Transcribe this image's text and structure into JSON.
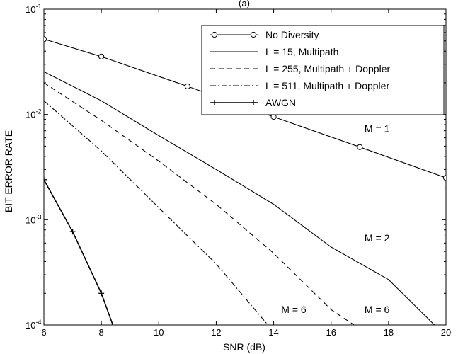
{
  "header": {
    "panel_label": "(a)"
  },
  "chart_data": {
    "type": "line",
    "xlabel": "SNR (dB)",
    "ylabel": "BIT ERROR RATE",
    "xlim": [
      6,
      20
    ],
    "ylim": [
      0.0001,
      0.1
    ],
    "yscale": "log",
    "grid": false,
    "legend_position": "top-right",
    "x_ticks": [
      6,
      8,
      10,
      12,
      14,
      16,
      18,
      20
    ],
    "x_tick_labels": [
      "6",
      "8",
      "10",
      "12",
      "14",
      "16",
      "18",
      "20"
    ],
    "y_ticks": [
      0.0001,
      0.001,
      0.01,
      0.1
    ],
    "y_tick_bases": [
      "10",
      "10",
      "10",
      "10"
    ],
    "y_tick_exponents": [
      "-4",
      "-3",
      "-2",
      "-1"
    ],
    "series": [
      {
        "name": "No Diversity",
        "style": "solid-circle",
        "x": [
          6,
          8,
          11,
          14,
          17,
          20
        ],
        "y": [
          0.052,
          0.0355,
          0.0185,
          0.0095,
          0.0049,
          0.0025
        ]
      },
      {
        "name": "L = 15, Multipath",
        "style": "solid",
        "x": [
          6,
          8,
          10,
          12,
          14,
          16,
          18,
          19.6
        ],
        "y": [
          0.0255,
          0.0135,
          0.0063,
          0.003,
          0.0014,
          0.00055,
          0.00027,
          0.0001
        ]
      },
      {
        "name": "L = 255, Multipath + Doppler",
        "style": "dashed",
        "x": [
          6,
          8,
          10,
          12,
          14,
          16,
          16.8
        ],
        "y": [
          0.02,
          0.0088,
          0.0036,
          0.0014,
          0.00048,
          0.00014,
          0.0001
        ]
      },
      {
        "name": "L = 511, Multipath + Doppler",
        "style": "dashdot",
        "x": [
          6,
          8,
          10,
          12,
          13.8
        ],
        "y": [
          0.0135,
          0.0045,
          0.0013,
          0.00038,
          0.0001
        ]
      },
      {
        "name": "AWGN",
        "style": "solid-plus",
        "x": [
          6,
          7,
          8,
          8.4
        ],
        "y": [
          0.0024,
          0.00077,
          0.0002,
          0.0001
        ]
      }
    ],
    "annotations": [
      {
        "text": "M = 1",
        "x": 17.6,
        "y": 0.0068
      },
      {
        "text": "M = 2",
        "x": 17.6,
        "y": 0.00062
      },
      {
        "text": "M = 6",
        "x": 14.7,
        "y": 0.00013
      },
      {
        "text": "M = 6",
        "x": 17.6,
        "y": 0.00013
      }
    ]
  }
}
